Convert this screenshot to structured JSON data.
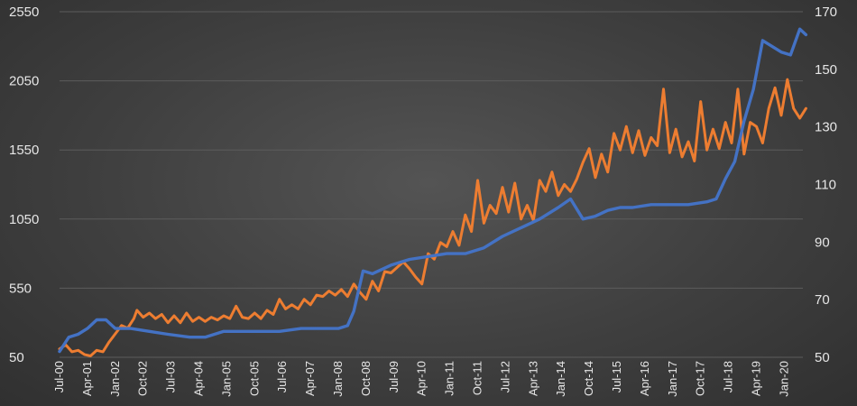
{
  "chart_data": {
    "type": "line",
    "title": "",
    "xlabel": "",
    "ylabel": "",
    "y_left": {
      "ticks": [
        50,
        550,
        1050,
        1550,
        2050,
        2550
      ],
      "lim": [
        50,
        2550
      ]
    },
    "y_right": {
      "ticks": [
        50,
        70,
        90,
        110,
        130,
        150,
        170
      ],
      "lim": [
        50,
        170
      ]
    },
    "x_range": [
      "2000-07",
      "2020-07"
    ],
    "x_ticks": [
      "Jul-00",
      "Apr-01",
      "Jan-02",
      "Oct-02",
      "Jul-03",
      "Apr-04",
      "Jan-05",
      "Oct-05",
      "Jul-06",
      "Apr-07",
      "Jan-08",
      "Oct-08",
      "Jul-09",
      "Apr-10",
      "Jan-11",
      "Oct-11",
      "Jul-12",
      "Apr-13",
      "Jan-14",
      "Oct-14",
      "Jul-15",
      "Apr-16",
      "Jan-17",
      "Oct-17",
      "Jul-18",
      "Apr-19",
      "Jan-20"
    ],
    "grid": true,
    "legend": "none",
    "series": [
      {
        "axis": "left",
        "color": "#ED7D31",
        "points": [
          [
            "2000-07",
            110
          ],
          [
            "2000-09",
            140
          ],
          [
            "2000-11",
            90
          ],
          [
            "2001-01",
            100
          ],
          [
            "2001-03",
            70
          ],
          [
            "2001-05",
            60
          ],
          [
            "2001-07",
            100
          ],
          [
            "2001-09",
            90
          ],
          [
            "2001-11",
            160
          ],
          [
            "2002-01",
            220
          ],
          [
            "2002-03",
            280
          ],
          [
            "2002-05",
            260
          ],
          [
            "2002-07",
            330
          ],
          [
            "2002-08",
            390
          ],
          [
            "2002-10",
            340
          ],
          [
            "2002-12",
            370
          ],
          [
            "2003-02",
            330
          ],
          [
            "2003-04",
            360
          ],
          [
            "2003-06",
            300
          ],
          [
            "2003-08",
            350
          ],
          [
            "2003-10",
            300
          ],
          [
            "2003-12",
            370
          ],
          [
            "2004-02",
            310
          ],
          [
            "2004-04",
            340
          ],
          [
            "2004-06",
            310
          ],
          [
            "2004-08",
            340
          ],
          [
            "2004-10",
            320
          ],
          [
            "2004-12",
            350
          ],
          [
            "2005-02",
            330
          ],
          [
            "2005-04",
            420
          ],
          [
            "2005-06",
            340
          ],
          [
            "2005-08",
            330
          ],
          [
            "2005-10",
            370
          ],
          [
            "2005-12",
            330
          ],
          [
            "2006-02",
            390
          ],
          [
            "2006-04",
            360
          ],
          [
            "2006-06",
            470
          ],
          [
            "2006-08",
            400
          ],
          [
            "2006-10",
            430
          ],
          [
            "2006-12",
            400
          ],
          [
            "2007-02",
            470
          ],
          [
            "2007-04",
            430
          ],
          [
            "2007-06",
            500
          ],
          [
            "2007-08",
            490
          ],
          [
            "2007-10",
            530
          ],
          [
            "2007-12",
            500
          ],
          [
            "2008-02",
            540
          ],
          [
            "2008-04",
            490
          ],
          [
            "2008-06",
            580
          ],
          [
            "2008-08",
            520
          ],
          [
            "2008-10",
            470
          ],
          [
            "2008-12",
            600
          ],
          [
            "2009-02",
            530
          ],
          [
            "2009-04",
            670
          ],
          [
            "2009-06",
            660
          ],
          [
            "2009-08",
            700
          ],
          [
            "2009-10",
            740
          ],
          [
            "2009-12",
            690
          ],
          [
            "2010-02",
            630
          ],
          [
            "2010-04",
            580
          ],
          [
            "2010-06",
            800
          ],
          [
            "2010-08",
            760
          ],
          [
            "2010-10",
            880
          ],
          [
            "2010-12",
            850
          ],
          [
            "2011-02",
            960
          ],
          [
            "2011-04",
            860
          ],
          [
            "2011-06",
            1080
          ],
          [
            "2011-08",
            960
          ],
          [
            "2011-10",
            1330
          ],
          [
            "2011-12",
            1020
          ],
          [
            "2012-02",
            1150
          ],
          [
            "2012-04",
            1090
          ],
          [
            "2012-06",
            1280
          ],
          [
            "2012-08",
            1100
          ],
          [
            "2012-10",
            1310
          ],
          [
            "2012-12",
            1050
          ],
          [
            "2013-02",
            1150
          ],
          [
            "2013-04",
            1040
          ],
          [
            "2013-06",
            1330
          ],
          [
            "2013-08",
            1250
          ],
          [
            "2013-10",
            1390
          ],
          [
            "2013-12",
            1220
          ],
          [
            "2014-02",
            1300
          ],
          [
            "2014-04",
            1250
          ],
          [
            "2014-06",
            1340
          ],
          [
            "2014-08",
            1460
          ],
          [
            "2014-10",
            1560
          ],
          [
            "2014-12",
            1350
          ],
          [
            "2015-02",
            1520
          ],
          [
            "2015-04",
            1390
          ],
          [
            "2015-06",
            1670
          ],
          [
            "2015-08",
            1550
          ],
          [
            "2015-10",
            1720
          ],
          [
            "2015-12",
            1530
          ],
          [
            "2016-02",
            1690
          ],
          [
            "2016-04",
            1510
          ],
          [
            "2016-06",
            1640
          ],
          [
            "2016-08",
            1580
          ],
          [
            "2016-10",
            1990
          ],
          [
            "2016-12",
            1530
          ],
          [
            "2017-02",
            1700
          ],
          [
            "2017-04",
            1500
          ],
          [
            "2017-06",
            1610
          ],
          [
            "2017-08",
            1470
          ],
          [
            "2017-10",
            1900
          ],
          [
            "2017-12",
            1550
          ],
          [
            "2018-02",
            1700
          ],
          [
            "2018-04",
            1560
          ],
          [
            "2018-06",
            1750
          ],
          [
            "2018-08",
            1600
          ],
          [
            "2018-10",
            1990
          ],
          [
            "2018-12",
            1520
          ],
          [
            "2019-02",
            1750
          ],
          [
            "2019-04",
            1720
          ],
          [
            "2019-06",
            1600
          ],
          [
            "2019-08",
            1850
          ],
          [
            "2019-10",
            2000
          ],
          [
            "2019-12",
            1800
          ],
          [
            "2020-02",
            2060
          ],
          [
            "2020-04",
            1850
          ],
          [
            "2020-06",
            1780
          ],
          [
            "2020-08",
            1850
          ]
        ]
      },
      {
        "axis": "right",
        "color": "#4472C4",
        "points": [
          [
            "2000-07",
            52
          ],
          [
            "2000-10",
            57
          ],
          [
            "2001-01",
            58
          ],
          [
            "2001-04",
            60
          ],
          [
            "2001-07",
            63
          ],
          [
            "2001-10",
            63
          ],
          [
            "2002-01",
            60
          ],
          [
            "2002-06",
            60
          ],
          [
            "2002-12",
            59
          ],
          [
            "2003-06",
            58
          ],
          [
            "2004-01",
            57
          ],
          [
            "2004-06",
            57
          ],
          [
            "2004-12",
            59
          ],
          [
            "2005-06",
            59
          ],
          [
            "2006-01",
            59
          ],
          [
            "2006-06",
            59
          ],
          [
            "2007-01",
            60
          ],
          [
            "2007-06",
            60
          ],
          [
            "2008-01",
            60
          ],
          [
            "2008-04",
            61
          ],
          [
            "2008-06",
            66
          ],
          [
            "2008-09",
            80
          ],
          [
            "2008-12",
            79
          ],
          [
            "2009-06",
            82
          ],
          [
            "2009-12",
            84
          ],
          [
            "2010-06",
            85
          ],
          [
            "2010-12",
            86
          ],
          [
            "2011-06",
            86
          ],
          [
            "2011-12",
            88
          ],
          [
            "2012-06",
            92
          ],
          [
            "2012-12",
            95
          ],
          [
            "2013-06",
            98
          ],
          [
            "2013-12",
            102
          ],
          [
            "2014-04",
            105
          ],
          [
            "2014-08",
            98
          ],
          [
            "2014-12",
            99
          ],
          [
            "2015-04",
            101
          ],
          [
            "2015-08",
            102
          ],
          [
            "2015-12",
            102
          ],
          [
            "2016-06",
            103
          ],
          [
            "2017-01",
            103
          ],
          [
            "2017-06",
            103
          ],
          [
            "2017-12",
            104
          ],
          [
            "2018-03",
            105
          ],
          [
            "2018-06",
            112
          ],
          [
            "2018-09",
            118
          ],
          [
            "2018-12",
            132
          ],
          [
            "2019-03",
            143
          ],
          [
            "2019-06",
            160
          ],
          [
            "2019-09",
            158
          ],
          [
            "2019-12",
            156
          ],
          [
            "2020-03",
            155
          ],
          [
            "2020-06",
            164
          ],
          [
            "2020-08",
            162
          ]
        ]
      }
    ]
  }
}
